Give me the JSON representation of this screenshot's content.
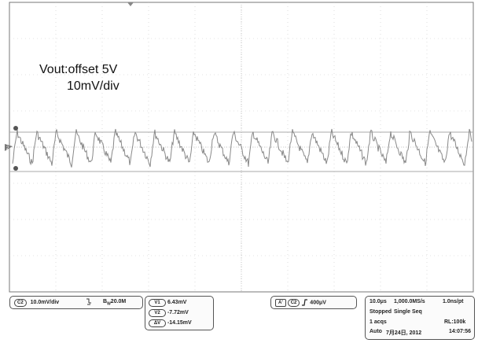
{
  "annotation": {
    "line1": "Vout:offset 5V",
    "line2": "10mV/div"
  },
  "screen": {
    "grid_divisions": {
      "horizontal": 10,
      "vertical": 8
    },
    "trace_color": "#888888",
    "grid_color": "#c8c8c8",
    "cursor_line_color": "#aaaaaa",
    "ref_markers": [
      "1",
      "2",
      "3"
    ],
    "trigger_marker": "T"
  },
  "channel_box": {
    "channel": "C2",
    "scale": "10.0mV/div",
    "coupling_icon": "probe-icon",
    "bandwidth": "20.0M",
    "bandwidth_prefix": "B",
    "bandwidth_sub": "W"
  },
  "cursor_box": {
    "rows": [
      {
        "label": "V1",
        "value": "6.43mV"
      },
      {
        "label": "V2",
        "value": "-7.72mV"
      },
      {
        "label": "ΔV",
        "value": "-14.15mV"
      }
    ]
  },
  "trigger_box": {
    "mode": "A'",
    "channel": "C2",
    "slope_icon": "rising-edge-icon",
    "level": "400μV"
  },
  "acq_box": {
    "timebase": "10.0μs",
    "sample_rate": "1,000.0MS/s",
    "resolution": "1.0ns/pt",
    "state": "Stopped",
    "seq": "Single Seq",
    "acqs": "1 acqs",
    "record_length": "RL:100k",
    "trigger_mode": "Auto",
    "date": "7月24日, 2012",
    "time": "14:07:56"
  }
}
